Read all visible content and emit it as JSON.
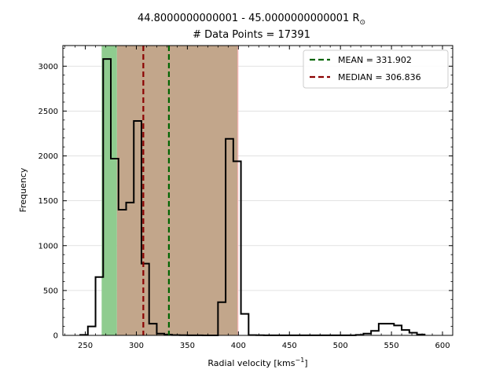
{
  "chart_data": {
    "type": "histogram",
    "title": {
      "line1_main": "44.8000000000001 - 45.0000000000001 R",
      "line1_sub": "⊙",
      "line2": "# Data Points = 17391"
    },
    "xlabel_main": "Radial velocity [kms",
    "xlabel_sup": "−1",
    "xlabel_end": "]",
    "ylabel": "Frequency",
    "xlim": [
      228,
      610
    ],
    "ylim": [
      0,
      3230
    ],
    "xticks": [
      250,
      300,
      350,
      400,
      450,
      500,
      550,
      600
    ],
    "xtick_labels": [
      "250",
      "300",
      "350",
      "400",
      "450",
      "500",
      "550",
      "600"
    ],
    "yticks": [
      0,
      500,
      1000,
      1500,
      2000,
      2500,
      3000
    ],
    "ytick_labels": [
      "0",
      "500",
      "1000",
      "1500",
      "2000",
      "2500",
      "3000"
    ],
    "bin_width": 7.5,
    "bins_start": 245,
    "counts": [
      5,
      100,
      650,
      3080,
      1970,
      1400,
      1480,
      2390,
      800,
      130,
      20,
      8,
      3,
      2,
      1,
      1,
      0,
      0,
      370,
      2190,
      1940,
      240,
      3,
      2,
      1,
      1,
      1,
      1,
      1,
      1,
      1,
      1,
      1,
      1,
      1,
      1,
      5,
      20,
      50,
      130,
      130,
      110,
      60,
      30,
      10
    ],
    "mean": 331.902,
    "median": 306.836,
    "bands": [
      {
        "x0": 266,
        "x1": 281,
        "color": "#8fcc8f"
      },
      {
        "x0": 281,
        "x1": 399,
        "color": "#c2a68b"
      },
      {
        "x0": 399,
        "x1": 400,
        "color": "#f4b2b2"
      }
    ],
    "grid": true,
    "legend_position": "top-right",
    "legend": [
      {
        "label": "MEAN = 331.902",
        "color": "#006400"
      },
      {
        "label": "MEDIAN = 306.836",
        "color": "#8b0000"
      }
    ]
  }
}
